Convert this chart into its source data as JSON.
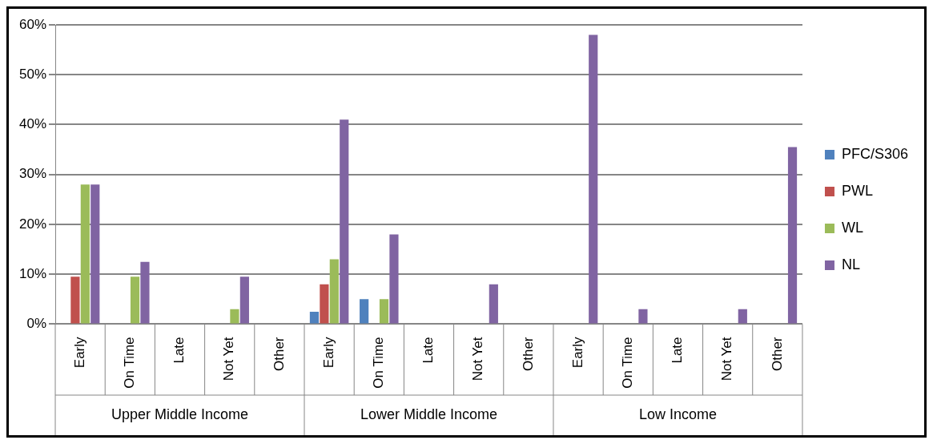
{
  "chart_data": {
    "type": "bar",
    "categories": [
      "Early",
      "On Time",
      "Late",
      "Not Yet",
      "Other",
      "Early",
      "On Time",
      "Late",
      "Not Yet",
      "Other",
      "Early",
      "On Time",
      "Late",
      "Not Yet",
      "Other"
    ],
    "series": [
      {
        "name": "PFC/S306",
        "color": "#4f81bd",
        "values": [
          0,
          0,
          0,
          0,
          0,
          2.5,
          5,
          0,
          0,
          0,
          0,
          0,
          0,
          0,
          0
        ]
      },
      {
        "name": "PWL",
        "color": "#c0504d",
        "values": [
          9.5,
          0,
          0,
          0,
          0,
          8,
          0,
          0,
          0,
          0,
          0,
          0,
          0,
          0,
          0
        ]
      },
      {
        "name": "WL",
        "color": "#9bbb59",
        "values": [
          28,
          9.5,
          0,
          3,
          0,
          13,
          5,
          0,
          0,
          0,
          0,
          0,
          0,
          0,
          0
        ]
      },
      {
        "name": "NL",
        "color": "#8064a2",
        "values": [
          28,
          12.5,
          0,
          9.5,
          0,
          41,
          18,
          0,
          8,
          0,
          58,
          3,
          0,
          3,
          35.5
        ]
      }
    ],
    "annotations": [
      "Upper Middle Income",
      "Lower Middle Income",
      "Low Income"
    ],
    "ylim": [
      0,
      60
    ],
    "yticks": [
      {
        "value": 0,
        "label": "0%"
      },
      {
        "value": 10,
        "label": "10%"
      },
      {
        "value": 20,
        "label": "20%"
      },
      {
        "value": 30,
        "label": "30%"
      },
      {
        "value": 40,
        "label": "40%"
      },
      {
        "value": 50,
        "label": "50%"
      },
      {
        "value": 60,
        "label": "60%"
      }
    ],
    "grid": "y",
    "legend": "right"
  }
}
